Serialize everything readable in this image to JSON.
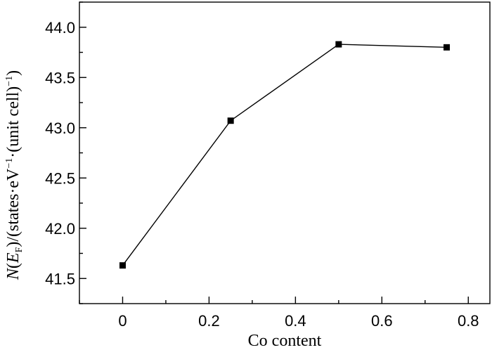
{
  "chart_data": {
    "type": "line",
    "xlabel": "Co content",
    "ylabel": {
      "pre": "N",
      "paren_open": "(",
      "E": "E",
      "sub": "F",
      "rest": ")/(states·eV",
      "sup1": "−1",
      "rest2": "·(unit cell)",
      "sup2": "−1",
      "close": ")"
    },
    "xlim": [
      -0.1,
      0.85
    ],
    "ylim": [
      41.25,
      44.25
    ],
    "x_ticks": [
      "0",
      "0.2",
      "0.4",
      "0.6",
      "0.8"
    ],
    "x_tick_values": [
      0,
      0.2,
      0.4,
      0.6,
      0.8
    ],
    "x_minor_ticks": [
      -0.1,
      0.1,
      0.3,
      0.5,
      0.7
    ],
    "y_ticks": [
      "41.5",
      "42.0",
      "42.5",
      "43.0",
      "43.5",
      "44.0"
    ],
    "y_tick_values": [
      41.5,
      42.0,
      42.5,
      43.0,
      43.5,
      44.0
    ],
    "y_minor_ticks": [
      41.25,
      41.75,
      42.25,
      42.75,
      43.25,
      43.75,
      44.25
    ],
    "grid": false,
    "series": [
      {
        "x": [
          0,
          0.25,
          0.5,
          0.75
        ],
        "y": [
          41.63,
          43.07,
          43.83,
          43.8
        ],
        "marker": "square",
        "color": "#000000"
      }
    ]
  }
}
